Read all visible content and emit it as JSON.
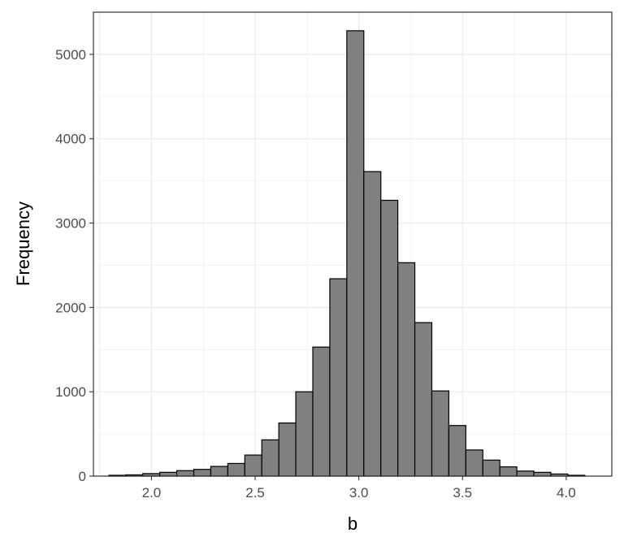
{
  "chart_data": {
    "type": "bar",
    "subtype": "histogram",
    "title": "",
    "xlabel": "b",
    "ylabel": "Frequency",
    "xlim": [
      1.72,
      4.22
    ],
    "ylim": [
      0,
      5500
    ],
    "x_ticks": [
      2.0,
      2.5,
      3.0,
      3.5,
      4.0
    ],
    "x_tick_labels": [
      "2.0",
      "2.5",
      "3.0",
      "3.5",
      "4.0"
    ],
    "y_ticks": [
      0,
      1000,
      2000,
      3000,
      4000,
      5000
    ],
    "y_tick_labels": [
      "0",
      "1000",
      "2000",
      "3000",
      "4000",
      "5000"
    ],
    "grid": true,
    "bin_width": 0.082,
    "bin_start": 1.794,
    "values": [
      10,
      15,
      30,
      45,
      65,
      80,
      115,
      150,
      250,
      430,
      630,
      1000,
      1530,
      2340,
      5280,
      3610,
      3270,
      2530,
      1820,
      1010,
      600,
      310,
      190,
      110,
      60,
      45,
      25,
      10
    ],
    "colors": {
      "bar_fill": "#808080",
      "bar_stroke": "#000000",
      "grid": "#ebebeb",
      "panel_border": "#333333"
    }
  }
}
